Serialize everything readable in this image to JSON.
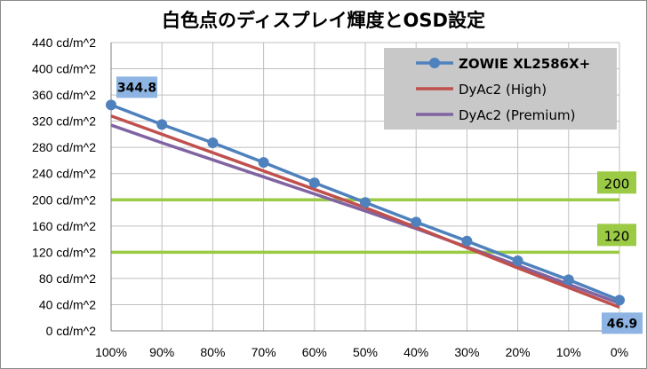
{
  "chart_data": {
    "type": "line",
    "title": "白色点のディスプレイ輝度とOSD設定",
    "x": [
      "100%",
      "90%",
      "80%",
      "70%",
      "60%",
      "50%",
      "40%",
      "30%",
      "20%",
      "10%",
      "0%"
    ],
    "y_ticks": [
      "0 cd/m^2",
      "40 cd/m^2",
      "80 cd/m^2",
      "120 cd/m^2",
      "160 cd/m^2",
      "200 cd/m^2",
      "240 cd/m^2",
      "280 cd/m^2",
      "320 cd/m^2",
      "360 cd/m^2",
      "400 cd/m^2",
      "440 cd/m^2"
    ],
    "ylim": [
      0,
      440
    ],
    "grid": true,
    "series": [
      {
        "name": "ZOWIE XL2586X+",
        "color": "#4f81bd",
        "markers": true,
        "values": [
          344.8,
          315,
          287,
          257,
          226,
          196,
          166,
          137,
          107,
          78,
          46.9
        ]
      },
      {
        "name": "DyAc2 (High)",
        "color": "#c0504d",
        "markers": false,
        "values": [
          328,
          300,
          272,
          244,
          216,
          188,
          158,
          127,
          96,
          66,
          36
        ]
      },
      {
        "name": "DyAc2 (Premium)",
        "color": "#8064a2",
        "markers": false,
        "values": [
          314,
          287,
          261,
          235,
          209,
          183,
          156,
          128,
          100,
          71,
          42
        ]
      }
    ],
    "reference_lines": [
      {
        "value": 200,
        "label": "200",
        "color": "#9bca45"
      },
      {
        "value": 120,
        "label": "120",
        "color": "#9bca45"
      }
    ],
    "data_labels": [
      {
        "text": "344.8",
        "series": "ZOWIE XL2586X+",
        "x": "100%"
      },
      {
        "text": "46.9",
        "series": "ZOWIE XL2586X+",
        "x": "0%"
      }
    ],
    "legend_position": "top-right"
  },
  "colors": {
    "legend_bg": "#c8c8c8",
    "data_label_bg": "#8db4e2",
    "grid": "#bfbfbf"
  }
}
